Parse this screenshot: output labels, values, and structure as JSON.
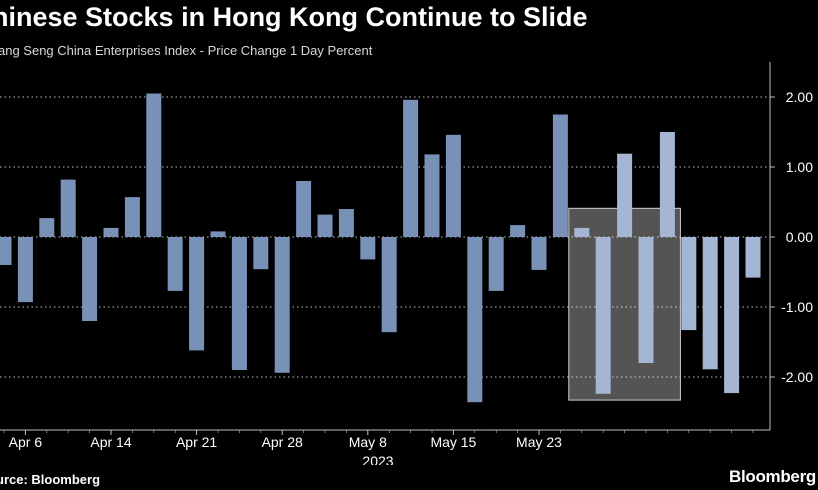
{
  "header": {
    "title": "hinese Stocks in Hong Kong Continue to Slide",
    "subtitle": "ang Seng China Enterprises Index - Price Change 1 Day Percent"
  },
  "footer": {
    "source": "urce: Bloomberg",
    "brand": "Bloomberg"
  },
  "colors": {
    "background": "#000000",
    "bar": "#7990b7",
    "bar_highlight": "#a4b6d4",
    "highlight_box": "#ffffff",
    "grid": "#bfbfbf",
    "axis_text": "#ffffff"
  },
  "chart_data": {
    "type": "bar",
    "title": "hinese Stocks in Hong Kong Continue to Slide",
    "subtitle": "ang Seng China Enterprises Index - Price Change 1 Day Percent",
    "xlabel": "2023",
    "ylabel": "",
    "ylim": [
      -2.8,
      2.45
    ],
    "y_ticks": [
      2,
      1,
      0,
      -1,
      -2
    ],
    "y_tick_labels": [
      "2.00",
      "1.00",
      "0.00",
      "-1.00",
      "-2.00"
    ],
    "y_axis_side": "right",
    "grid": "horizontal dashed",
    "x_tick_labels": [
      "Apr 6",
      "Apr 14",
      "Apr 21",
      "Apr 28",
      "May 8",
      "May 15",
      "May 23"
    ],
    "x_tick_bar_index": [
      1,
      5,
      9,
      13,
      17,
      21,
      25
    ],
    "highlight_range": [
      27,
      31
    ],
    "values": [
      -0.4,
      -0.93,
      0.27,
      0.82,
      -1.2,
      0.13,
      0.57,
      2.05,
      -0.77,
      -1.62,
      0.08,
      -1.9,
      -0.46,
      -1.94,
      0.8,
      0.32,
      0.4,
      -0.32,
      -1.36,
      1.96,
      1.18,
      1.46,
      -2.36,
      -0.77,
      0.17,
      -0.47,
      1.75,
      0.13,
      -2.24,
      1.19,
      -1.8,
      1.5,
      -1.33,
      -1.89,
      -2.23,
      -0.58
    ]
  }
}
